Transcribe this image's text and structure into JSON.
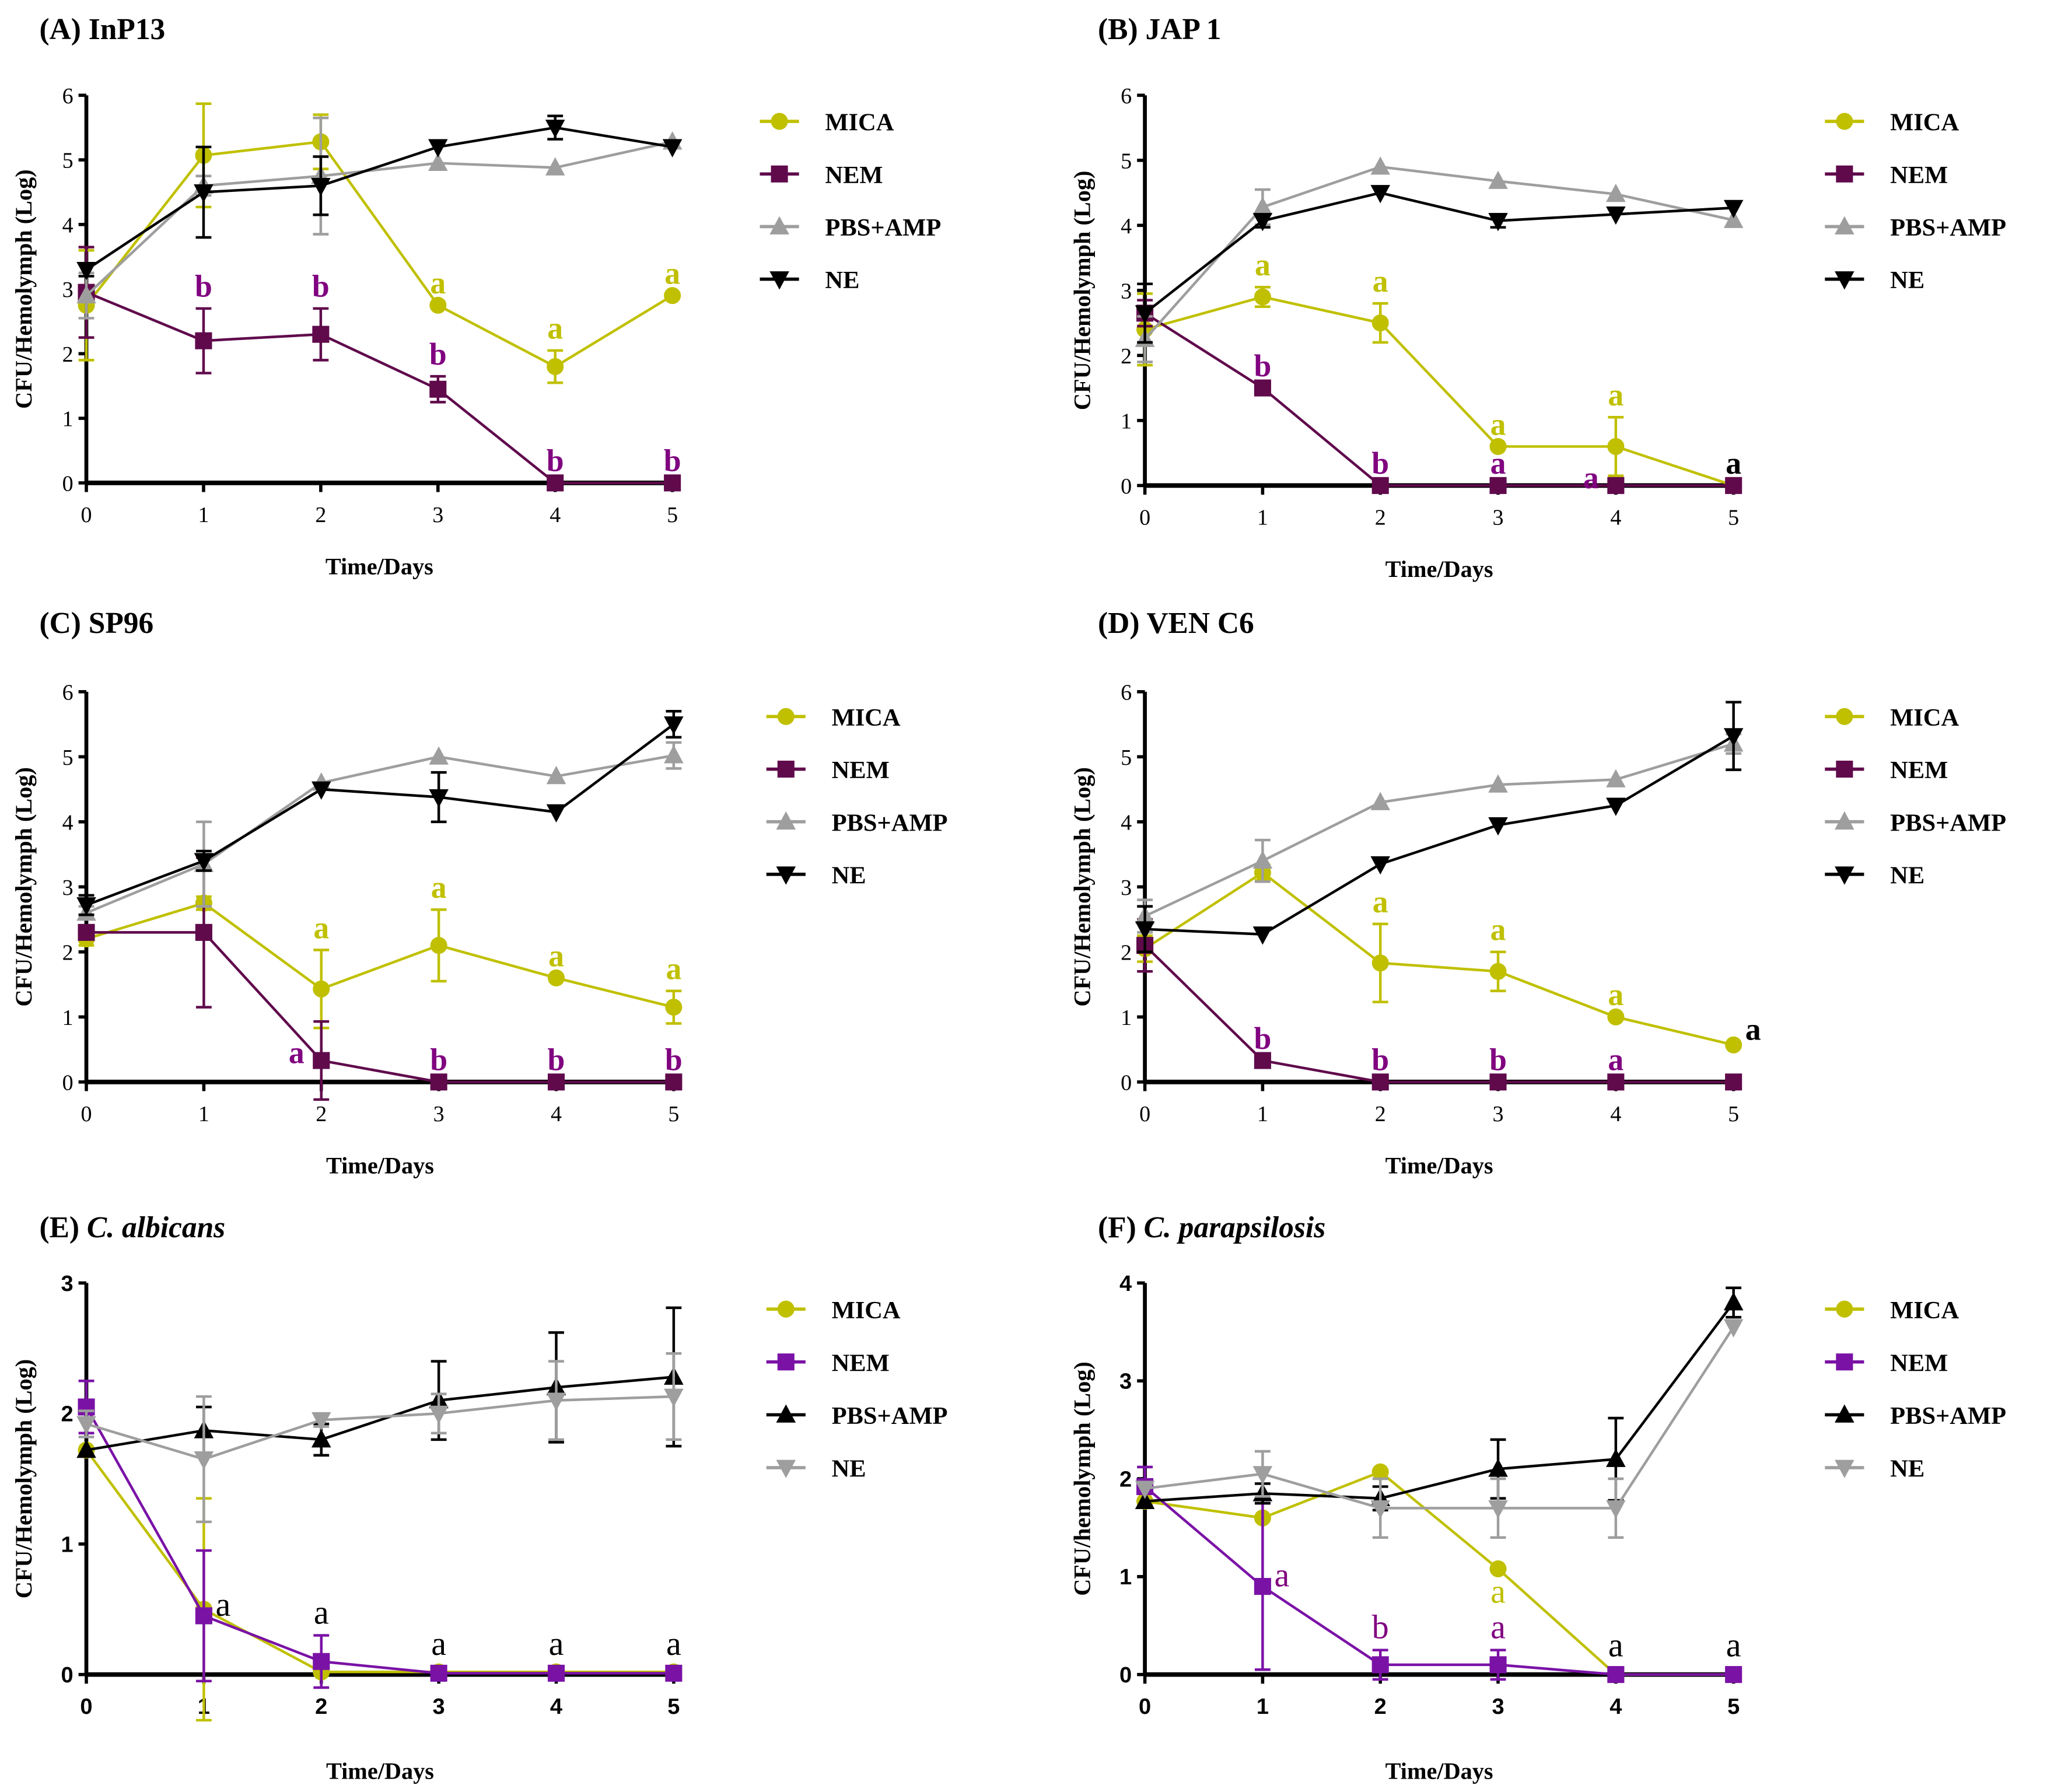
{
  "colors": {
    "mica": "#c0c000",
    "nem": "#600a4c",
    "nem_letter": "#800080",
    "nem_ef": "#7a12a6",
    "pbs": "#9e9e9e",
    "ne": "#000000"
  },
  "chart_data": [
    {
      "type": "line",
      "title_prefix": "(A) ",
      "title_italic": "",
      "title": "InP13",
      "xlabel": "Time/Days",
      "ylabel": "CFU/Hemolymph (Log)",
      "xlim": [
        0,
        5
      ],
      "ylim": [
        0,
        6
      ],
      "x": [
        0,
        1,
        2,
        3,
        4,
        5
      ],
      "legend": "right",
      "series": [
        {
          "name": "MICA",
          "marker": "circle",
          "color": "#c0c000",
          "values": [
            2.75,
            5.07,
            5.28,
            2.75,
            1.8,
            2.9
          ],
          "errors": [
            0.85,
            0.8,
            0.42,
            0,
            0.25,
            0
          ]
        },
        {
          "name": "NEM",
          "marker": "square",
          "color": "#600a4c",
          "values": [
            2.95,
            2.2,
            2.3,
            1.45,
            0,
            0
          ],
          "errors": [
            0.7,
            0.5,
            0.4,
            0.2,
            0,
            0
          ]
        },
        {
          "name": "PBS+AMP",
          "marker": "triangle-up",
          "color": "#9e9e9e",
          "values": [
            2.9,
            4.6,
            4.75,
            4.95,
            4.88,
            5.28
          ],
          "errors": [
            0.35,
            0.15,
            0.9,
            0,
            0,
            0
          ]
        },
        {
          "name": "NE",
          "marker": "triangle-down",
          "color": "#000000",
          "values": [
            3.3,
            4.5,
            4.6,
            5.2,
            5.5,
            5.2
          ],
          "errors": [
            0.1,
            0.7,
            0.45,
            0,
            0.18,
            0
          ]
        }
      ],
      "annotations": [
        {
          "text": "a",
          "day": 3,
          "series": 0,
          "color": "#c0c000"
        },
        {
          "text": "a",
          "day": 4,
          "series": 0,
          "color": "#c0c000"
        },
        {
          "text": "a",
          "day": 5,
          "series": 0,
          "color": "#c0c000"
        },
        {
          "text": "b",
          "day": 1,
          "series": 1,
          "color": "#800080"
        },
        {
          "text": "b",
          "day": 2,
          "series": 1,
          "color": "#800080"
        },
        {
          "text": "b",
          "day": 3,
          "series": 1,
          "color": "#800080"
        },
        {
          "text": "b",
          "day": 4,
          "series": 1,
          "color": "#800080"
        },
        {
          "text": "b",
          "day": 5,
          "series": 1,
          "color": "#800080"
        }
      ]
    },
    {
      "type": "line",
      "title_prefix": "(B) ",
      "title_italic": "",
      "title": "JAP 1",
      "xlabel": "Time/Days",
      "ylabel": "CFU/Hemolymph (Log)",
      "xlim": [
        0,
        5
      ],
      "ylim": [
        0,
        6
      ],
      "x": [
        0,
        1,
        2,
        3,
        4,
        5
      ],
      "legend": "right",
      "series": [
        {
          "name": "MICA",
          "marker": "circle",
          "color": "#c0c000",
          "values": [
            2.4,
            2.9,
            2.5,
            0.6,
            0.6,
            0
          ],
          "errors": [
            0.55,
            0.15,
            0.3,
            0,
            0.45,
            0
          ]
        },
        {
          "name": "NEM",
          "marker": "square",
          "color": "#600a4c",
          "values": [
            2.65,
            1.5,
            0,
            0,
            0,
            0
          ],
          "errors": [
            0.2,
            0,
            0,
            0,
            0,
            0
          ]
        },
        {
          "name": "PBS+AMP",
          "marker": "triangle-up",
          "color": "#9e9e9e",
          "values": [
            2.25,
            4.28,
            4.9,
            4.68,
            4.48,
            4.08
          ],
          "errors": [
            0.35,
            0.27,
            0,
            0,
            0,
            0
          ]
        },
        {
          "name": "NE",
          "marker": "triangle-down",
          "color": "#000000",
          "values": [
            2.65,
            4.07,
            4.5,
            4.07,
            4.17,
            4.27
          ],
          "errors": [
            0.45,
            0.1,
            0,
            0.1,
            0,
            0
          ]
        }
      ],
      "annotations": [
        {
          "text": "a",
          "day": 1,
          "series": 0,
          "color": "#c0c000"
        },
        {
          "text": "a",
          "day": 2,
          "series": 0,
          "color": "#c0c000"
        },
        {
          "text": "a",
          "day": 3,
          "series": 0,
          "color": "#c0c000"
        },
        {
          "text": "a",
          "day": 4,
          "series": 0,
          "color": "#c0c000"
        },
        {
          "text": "b",
          "day": 1,
          "series": 1,
          "color": "#800080"
        },
        {
          "text": "b",
          "day": 2,
          "series": 1,
          "color": "#800080"
        },
        {
          "text": "a",
          "day": 3,
          "series": 1,
          "color": "#800080"
        },
        {
          "text": "a",
          "day": 4,
          "series": 1,
          "color": "#800080",
          "pos": "left"
        },
        {
          "text": "a",
          "day": 5,
          "series": 0,
          "color": "#000000"
        }
      ]
    },
    {
      "type": "line",
      "title_prefix": "(C) ",
      "title_italic": "",
      "title": "SP96",
      "xlabel": "Time/Days",
      "ylabel": "CFU/Hemolymph (Log)",
      "xlim": [
        0,
        5
      ],
      "ylim": [
        0,
        6
      ],
      "x": [
        0,
        1,
        2,
        3,
        4,
        5
      ],
      "legend": "right",
      "series": [
        {
          "name": "MICA",
          "marker": "circle",
          "color": "#c0c000",
          "values": [
            2.2,
            2.75,
            1.43,
            2.1,
            1.6,
            1.15
          ],
          "errors": [
            0.1,
            0.1,
            0.6,
            0.55,
            0,
            0.25
          ]
        },
        {
          "name": "NEM",
          "marker": "square",
          "color": "#600a4c",
          "values": [
            2.3,
            2.3,
            0.33,
            0,
            0,
            0
          ],
          "errors": [
            0.1,
            1.15,
            0.6,
            0,
            0,
            0
          ]
        },
        {
          "name": "PBS+AMP",
          "marker": "triangle-up",
          "color": "#9e9e9e",
          "values": [
            2.6,
            3.35,
            4.6,
            5.0,
            4.7,
            5.02
          ],
          "errors": [
            0.1,
            0.65,
            0,
            0,
            0,
            0.2
          ]
        },
        {
          "name": "NE",
          "marker": "triangle-down",
          "color": "#000000",
          "values": [
            2.72,
            3.4,
            4.5,
            4.38,
            4.15,
            5.5
          ],
          "errors": [
            0.15,
            0.15,
            0,
            0.38,
            0,
            0.2
          ]
        }
      ],
      "annotations": [
        {
          "text": "a",
          "day": 2,
          "series": 0,
          "color": "#c0c000"
        },
        {
          "text": "a",
          "day": 3,
          "series": 0,
          "color": "#c0c000"
        },
        {
          "text": "a",
          "day": 4,
          "series": 0,
          "color": "#c0c000"
        },
        {
          "text": "a",
          "day": 5,
          "series": 0,
          "color": "#c0c000"
        },
        {
          "text": "a",
          "day": 2,
          "series": 1,
          "color": "#800080",
          "pos": "left"
        },
        {
          "text": "b",
          "day": 3,
          "series": 1,
          "color": "#800080"
        },
        {
          "text": "b",
          "day": 4,
          "series": 1,
          "color": "#800080"
        },
        {
          "text": "b",
          "day": 5,
          "series": 1,
          "color": "#800080"
        }
      ]
    },
    {
      "type": "line",
      "title_prefix": "(D) ",
      "title_italic": "",
      "title": "VEN C6",
      "xlabel": "Time/Days",
      "ylabel": "CFU/Hemolymph (Log)",
      "xlim": [
        0,
        5
      ],
      "ylim": [
        0,
        6
      ],
      "x": [
        0,
        1,
        2,
        3,
        4,
        5
      ],
      "legend": "right",
      "series": [
        {
          "name": "MICA",
          "marker": "circle",
          "color": "#c0c000",
          "values": [
            2.05,
            3.22,
            1.83,
            1.7,
            1.0,
            0.57
          ],
          "errors": [
            0.2,
            0.12,
            0.6,
            0.3,
            0,
            0
          ]
        },
        {
          "name": "NEM",
          "marker": "square",
          "color": "#600a4c",
          "values": [
            2.1,
            0.33,
            0,
            0,
            0,
            0
          ],
          "errors": [
            0.4,
            0,
            0,
            0,
            0,
            0
          ]
        },
        {
          "name": "PBS+AMP",
          "marker": "triangle-up",
          "color": "#9e9e9e",
          "values": [
            2.55,
            3.4,
            4.3,
            4.57,
            4.65,
            5.2
          ],
          "errors": [
            0.25,
            0.32,
            0,
            0,
            0,
            0.15
          ]
        },
        {
          "name": "NE",
          "marker": "triangle-down",
          "color": "#000000",
          "values": [
            2.35,
            2.27,
            3.35,
            3.95,
            4.25,
            5.32
          ],
          "errors": [
            0.35,
            0,
            0,
            0,
            0,
            0.52
          ]
        }
      ],
      "annotations": [
        {
          "text": "a",
          "day": 2,
          "series": 0,
          "color": "#c0c000"
        },
        {
          "text": "a",
          "day": 3,
          "series": 0,
          "color": "#c0c000"
        },
        {
          "text": "a",
          "day": 4,
          "series": 0,
          "color": "#c0c000"
        },
        {
          "text": "b",
          "day": 1,
          "series": 1,
          "color": "#800080"
        },
        {
          "text": "b",
          "day": 2,
          "series": 1,
          "color": "#800080"
        },
        {
          "text": "b",
          "day": 3,
          "series": 1,
          "color": "#800080"
        },
        {
          "text": "a",
          "day": 4,
          "series": 1,
          "color": "#800080"
        },
        {
          "text": "a",
          "day": 5,
          "series": 0,
          "color": "#000000",
          "pos": "right"
        }
      ]
    },
    {
      "type": "line",
      "title_prefix": "(E) ",
      "title_italic": "C. albicans",
      "title": "",
      "xlabel": "Time/Days",
      "ylabel": "CFU/Hemolymph (Log)",
      "xlim": [
        0,
        5
      ],
      "ylim": [
        0,
        3
      ],
      "x": [
        0,
        1,
        2,
        3,
        4,
        5
      ],
      "legend": "right",
      "style": "ef",
      "series": [
        {
          "name": "MICA",
          "marker": "circle",
          "color": "#c0c000",
          "values": [
            1.72,
            0.5,
            0.02,
            0.02,
            0.02,
            0.02
          ],
          "errors": [
            0,
            0.85,
            0,
            0,
            0,
            0
          ]
        },
        {
          "name": "NEM",
          "marker": "square",
          "color": "#7a12a6",
          "values": [
            2.05,
            0.45,
            0.1,
            0.01,
            0.01,
            0.01
          ],
          "errors": [
            0.2,
            0.5,
            0.2,
            0,
            0,
            0
          ]
        },
        {
          "name": "PBS+AMP",
          "marker": "triangle-up",
          "color": "#000000",
          "values": [
            1.72,
            1.87,
            1.8,
            2.1,
            2.2,
            2.28
          ],
          "errors": [
            0,
            0.18,
            0.12,
            0.3,
            0.42,
            0.53
          ]
        },
        {
          "name": "NE",
          "marker": "triangle-down",
          "color": "#9e9e9e",
          "values": [
            1.92,
            1.65,
            1.95,
            2.0,
            2.1,
            2.13
          ],
          "errors": [
            0.1,
            0.48,
            0.05,
            0.15,
            0.3,
            0.33
          ]
        }
      ],
      "annotations": [
        {
          "text": "a",
          "day": 1,
          "series": 1,
          "color": "#000000",
          "pos": "right",
          "normal": true
        },
        {
          "text": "a",
          "day": 2,
          "series": 1,
          "color": "#000000",
          "normal": true
        },
        {
          "text": "a",
          "day": 3,
          "series": 1,
          "color": "#000000",
          "normal": true
        },
        {
          "text": "a",
          "day": 4,
          "series": 1,
          "color": "#000000",
          "normal": true
        },
        {
          "text": "a",
          "day": 5,
          "series": 1,
          "color": "#000000",
          "normal": true
        }
      ]
    },
    {
      "type": "line",
      "title_prefix": "(F) ",
      "title_italic": "C. parapsilosis",
      "title": "",
      "xlabel": "Time/Days",
      "ylabel": "CFU/hemolymph (Log)",
      "xlim": [
        0,
        5
      ],
      "ylim": [
        0,
        4
      ],
      "x": [
        0,
        1,
        2,
        3,
        4,
        5
      ],
      "legend": "right",
      "style": "ef",
      "series": [
        {
          "name": "MICA",
          "marker": "circle",
          "color": "#c0c000",
          "values": [
            1.77,
            1.6,
            2.07,
            1.08,
            0,
            0
          ],
          "errors": [
            0,
            0,
            0,
            0,
            0,
            0
          ]
        },
        {
          "name": "NEM",
          "marker": "square",
          "color": "#7a12a6",
          "values": [
            1.92,
            0.9,
            0.1,
            0.1,
            0,
            0
          ],
          "errors": [
            0.2,
            0.85,
            0.15,
            0.15,
            0,
            0
          ]
        },
        {
          "name": "PBS+AMP",
          "marker": "triangle-up",
          "color": "#000000",
          "values": [
            1.77,
            1.85,
            1.8,
            2.1,
            2.2,
            3.8
          ],
          "errors": [
            0,
            0.1,
            0.12,
            0.3,
            0.42,
            0.15
          ]
        },
        {
          "name": "NE",
          "marker": "triangle-down",
          "color": "#9e9e9e",
          "values": [
            1.9,
            2.05,
            1.7,
            1.7,
            1.7,
            3.55
          ],
          "errors": [
            0,
            0.23,
            0.3,
            0.3,
            0.3,
            0
          ]
        }
      ],
      "annotations": [
        {
          "text": "a",
          "day": 1,
          "series": 1,
          "color": "#800080",
          "pos": "right",
          "normal": true
        },
        {
          "text": "b",
          "day": 2,
          "series": 1,
          "color": "#800080",
          "normal": true
        },
        {
          "text": "a",
          "day": 3,
          "series": 1,
          "color": "#800080",
          "normal": true
        },
        {
          "text": "a",
          "day": 3,
          "series": 0,
          "color": "#c0c000",
          "pos": "below",
          "normal": true
        },
        {
          "text": "a",
          "day": 4,
          "series": 0,
          "color": "#000000",
          "normal": true
        },
        {
          "text": "a",
          "day": 5,
          "series": 0,
          "color": "#000000",
          "normal": true
        }
      ]
    }
  ]
}
